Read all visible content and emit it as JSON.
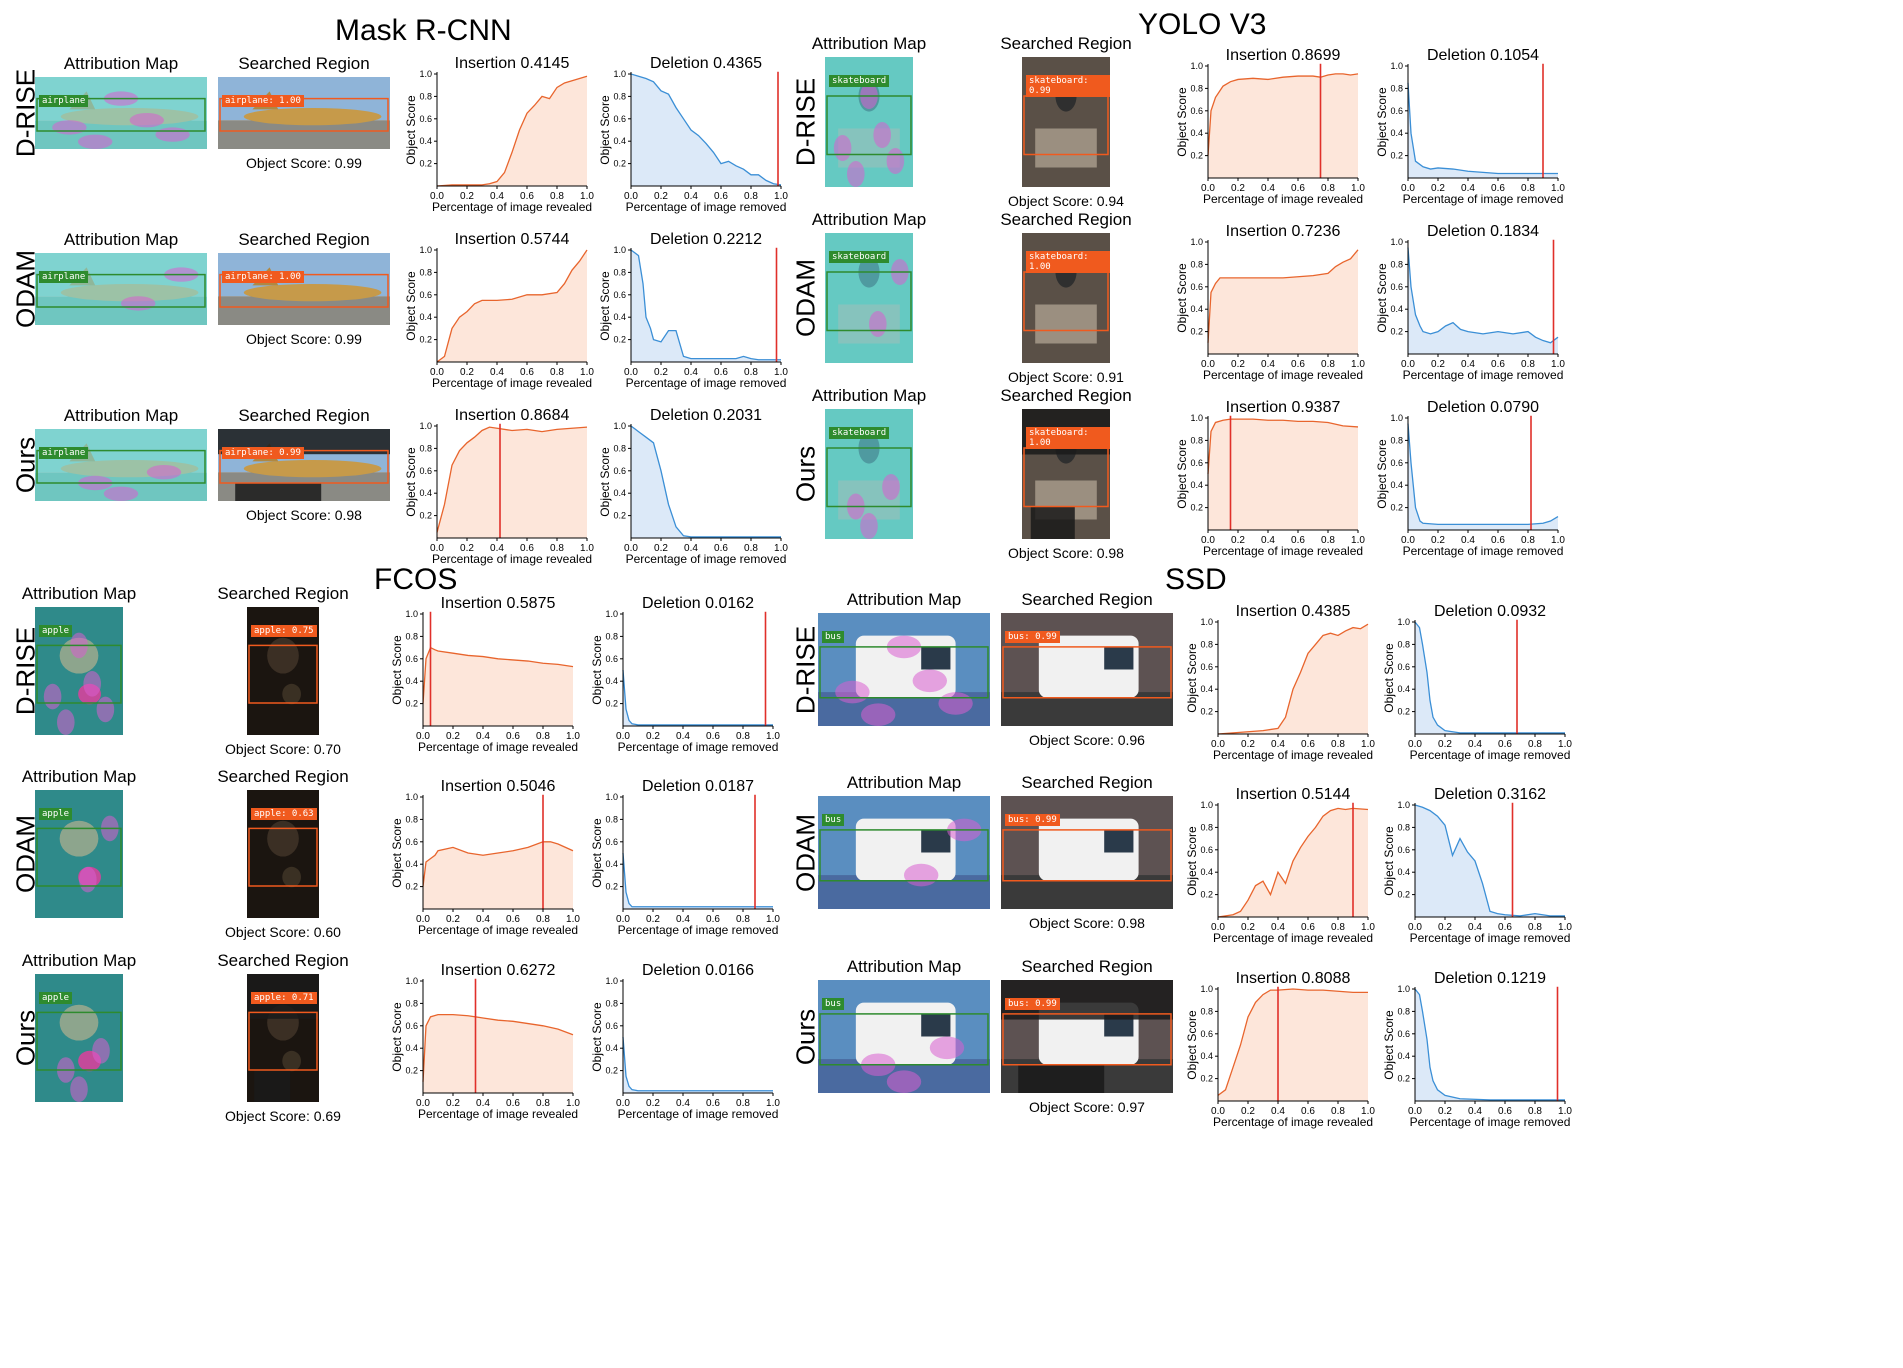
{
  "sections": [
    {
      "title": "Mask R-CNN",
      "object": "airplane",
      "image_kind": "airplane"
    },
    {
      "title": "YOLO V3",
      "object": "skateboard",
      "image_kind": "skate"
    },
    {
      "title": "FCOS",
      "object": "apple",
      "image_kind": "painting"
    },
    {
      "title": "SSD",
      "object": "bus",
      "image_kind": "bus"
    }
  ],
  "labels": {
    "attribution_map": "Attribution Map",
    "searched_region": "Searched Region",
    "object_score_prefix": "Object Score: ",
    "y_axis": "Object Score",
    "x_insertion": "Percentage of image revealed",
    "x_deletion": "Percentage of image removed",
    "insertion_prefix": "Insertion ",
    "deletion_prefix": "Deletion "
  },
  "rows": [
    {
      "section": 0,
      "method": "D-RISE",
      "det_label": "airplane: 1.00",
      "object_score": "0.99",
      "insertion": "0.4145",
      "deletion": "0.4365"
    },
    {
      "section": 0,
      "method": "ODAM",
      "det_label": "airplane: 1.00",
      "object_score": "0.99",
      "insertion": "0.5744",
      "deletion": "0.2212"
    },
    {
      "section": 0,
      "method": "Ours",
      "det_label": "airplane: 0.99",
      "object_score": "0.98",
      "insertion": "0.8684",
      "deletion": "0.2031"
    },
    {
      "section": 1,
      "method": "D-RISE",
      "det_label": "skateboard: 0.99",
      "object_score": "0.94",
      "insertion": "0.8699",
      "deletion": "0.1054"
    },
    {
      "section": 1,
      "method": "ODAM",
      "det_label": "skateboard: 1.00",
      "object_score": "0.91",
      "insertion": "0.7236",
      "deletion": "0.1834"
    },
    {
      "section": 1,
      "method": "Ours",
      "det_label": "skateboard: 1.00",
      "object_score": "0.98",
      "insertion": "0.9387",
      "deletion": "0.0790"
    },
    {
      "section": 2,
      "method": "D-RISE",
      "det_label": "apple: 0.75",
      "object_score": "0.70",
      "insertion": "0.5875",
      "deletion": "0.0162"
    },
    {
      "section": 2,
      "method": "ODAM",
      "det_label": "apple: 0.63",
      "object_score": "0.60",
      "insertion": "0.5046",
      "deletion": "0.0187"
    },
    {
      "section": 2,
      "method": "Ours",
      "det_label": "apple: 0.71",
      "object_score": "0.69",
      "insertion": "0.6272",
      "deletion": "0.0166"
    },
    {
      "section": 3,
      "method": "D-RISE",
      "det_label": "bus: 0.99",
      "object_score": "0.96",
      "insertion": "0.4385",
      "deletion": "0.0932"
    },
    {
      "section": 3,
      "method": "ODAM",
      "det_label": "bus: 0.99",
      "object_score": "0.98",
      "insertion": "0.5144",
      "deletion": "0.3162"
    },
    {
      "section": 3,
      "method": "Ours",
      "det_label": "bus: 0.99",
      "object_score": "0.97",
      "insertion": "0.8088",
      "deletion": "0.1219"
    }
  ],
  "colors": {
    "insertion_line": "#e8652d",
    "insertion_fill": "#fde6da",
    "deletion_line": "#3b8fd6",
    "deletion_fill": "#dce9f8",
    "marker": "#e0302a",
    "green_box": "#2e8b2e",
    "orange_box": "#f05a1e"
  },
  "chart_data": {
    "type": "area",
    "xlim": [
      0,
      1
    ],
    "ylim": [
      0,
      1
    ],
    "xticks": [
      "0.0",
      "0.2",
      "0.4",
      "0.6",
      "0.8",
      "1.0"
    ],
    "yticks": [
      "0.2",
      "0.4",
      "0.6",
      "0.8",
      "1.0"
    ],
    "curves": [
      {
        "row": 0,
        "kind": "insertion",
        "marker": null,
        "x": [
          0,
          0.1,
          0.2,
          0.3,
          0.35,
          0.4,
          0.45,
          0.5,
          0.55,
          0.6,
          0.65,
          0.7,
          0.75,
          0.8,
          0.85,
          0.9,
          0.95,
          1.0
        ],
        "y": [
          0,
          0.01,
          0.01,
          0.01,
          0.02,
          0.04,
          0.12,
          0.3,
          0.5,
          0.65,
          0.72,
          0.8,
          0.78,
          0.88,
          0.92,
          0.94,
          0.96,
          0.98
        ]
      },
      {
        "row": 0,
        "kind": "deletion",
        "marker": 0.98,
        "x": [
          0,
          0.05,
          0.1,
          0.15,
          0.2,
          0.25,
          0.3,
          0.35,
          0.4,
          0.45,
          0.5,
          0.55,
          0.6,
          0.65,
          0.7,
          0.75,
          0.8,
          0.85,
          0.9,
          0.95,
          1.0
        ],
        "y": [
          1.0,
          0.98,
          0.96,
          0.93,
          0.85,
          0.82,
          0.7,
          0.6,
          0.5,
          0.45,
          0.38,
          0.3,
          0.2,
          0.22,
          0.18,
          0.15,
          0.1,
          0.1,
          0.05,
          0.02,
          0.01
        ]
      },
      {
        "row": 1,
        "kind": "insertion",
        "marker": null,
        "x": [
          0,
          0.05,
          0.08,
          0.1,
          0.15,
          0.2,
          0.25,
          0.3,
          0.4,
          0.5,
          0.6,
          0.7,
          0.8,
          0.85,
          0.9,
          0.95,
          1.0
        ],
        "y": [
          0,
          0.05,
          0.2,
          0.3,
          0.4,
          0.45,
          0.52,
          0.55,
          0.55,
          0.56,
          0.6,
          0.6,
          0.62,
          0.7,
          0.82,
          0.9,
          1.0
        ]
      },
      {
        "row": 1,
        "kind": "deletion",
        "marker": 0.97,
        "x": [
          0,
          0.05,
          0.08,
          0.1,
          0.13,
          0.15,
          0.2,
          0.25,
          0.3,
          0.35,
          0.4,
          0.5,
          0.6,
          0.7,
          0.75,
          0.8,
          0.85,
          0.9,
          1.0
        ],
        "y": [
          1.0,
          0.95,
          0.7,
          0.4,
          0.3,
          0.2,
          0.18,
          0.28,
          0.28,
          0.05,
          0.03,
          0.03,
          0.03,
          0.03,
          0.05,
          0.03,
          0.02,
          0.02,
          0.02
        ]
      },
      {
        "row": 2,
        "kind": "insertion",
        "marker": 0.42,
        "x": [
          0,
          0.05,
          0.1,
          0.15,
          0.2,
          0.25,
          0.3,
          0.35,
          0.4,
          0.5,
          0.6,
          0.7,
          0.8,
          0.9,
          1.0
        ],
        "y": [
          0.05,
          0.3,
          0.65,
          0.78,
          0.85,
          0.9,
          0.96,
          0.99,
          0.98,
          0.96,
          0.97,
          0.95,
          0.97,
          0.98,
          0.99
        ]
      },
      {
        "row": 2,
        "kind": "deletion",
        "marker": null,
        "x": [
          0,
          0.05,
          0.1,
          0.15,
          0.2,
          0.25,
          0.3,
          0.35,
          0.4,
          0.5,
          0.6,
          0.8,
          1.0
        ],
        "y": [
          1.0,
          0.95,
          0.9,
          0.85,
          0.6,
          0.3,
          0.1,
          0.02,
          0.01,
          0.01,
          0.01,
          0.01,
          0.01
        ]
      },
      {
        "row": 3,
        "kind": "insertion",
        "marker": 0.75,
        "x": [
          0,
          0.02,
          0.05,
          0.1,
          0.15,
          0.2,
          0.3,
          0.4,
          0.5,
          0.6,
          0.7,
          0.75,
          0.8,
          0.85,
          0.9,
          0.95,
          1.0
        ],
        "y": [
          0.2,
          0.6,
          0.72,
          0.82,
          0.86,
          0.88,
          0.89,
          0.88,
          0.9,
          0.91,
          0.91,
          0.9,
          0.92,
          0.93,
          0.93,
          0.92,
          0.93
        ]
      },
      {
        "row": 3,
        "kind": "deletion",
        "marker": 0.9,
        "x": [
          0,
          0.02,
          0.05,
          0.1,
          0.15,
          0.2,
          0.3,
          0.4,
          0.5,
          0.6,
          0.7,
          0.8,
          0.9,
          1.0
        ],
        "y": [
          0.85,
          0.4,
          0.15,
          0.1,
          0.08,
          0.09,
          0.08,
          0.06,
          0.05,
          0.04,
          0.04,
          0.04,
          0.04,
          0.04
        ]
      },
      {
        "row": 4,
        "kind": "insertion",
        "marker": null,
        "x": [
          0,
          0.02,
          0.05,
          0.08,
          0.1,
          0.2,
          0.3,
          0.5,
          0.7,
          0.8,
          0.85,
          0.9,
          0.95,
          1.0
        ],
        "y": [
          0.1,
          0.55,
          0.63,
          0.68,
          0.68,
          0.68,
          0.68,
          0.68,
          0.7,
          0.72,
          0.78,
          0.82,
          0.85,
          0.93
        ]
      },
      {
        "row": 4,
        "kind": "deletion",
        "marker": 0.97,
        "x": [
          0,
          0.02,
          0.05,
          0.08,
          0.1,
          0.15,
          0.2,
          0.25,
          0.3,
          0.35,
          0.4,
          0.5,
          0.6,
          0.7,
          0.8,
          0.85,
          0.9,
          0.95,
          1.0
        ],
        "y": [
          0.95,
          0.6,
          0.35,
          0.25,
          0.2,
          0.18,
          0.2,
          0.25,
          0.28,
          0.22,
          0.2,
          0.18,
          0.2,
          0.18,
          0.2,
          0.15,
          0.12,
          0.1,
          0.15
        ]
      },
      {
        "row": 5,
        "kind": "insertion",
        "marker": 0.15,
        "x": [
          0,
          0.02,
          0.05,
          0.1,
          0.15,
          0.2,
          0.3,
          0.4,
          0.5,
          0.6,
          0.7,
          0.8,
          0.9,
          1.0
        ],
        "y": [
          0.5,
          0.88,
          0.96,
          0.98,
          0.99,
          0.99,
          0.99,
          0.98,
          0.98,
          0.97,
          0.97,
          0.96,
          0.93,
          0.92
        ]
      },
      {
        "row": 5,
        "kind": "deletion",
        "marker": 0.82,
        "x": [
          0,
          0.02,
          0.05,
          0.08,
          0.1,
          0.2,
          0.4,
          0.6,
          0.8,
          0.9,
          0.95,
          1.0
        ],
        "y": [
          0.95,
          0.6,
          0.2,
          0.08,
          0.06,
          0.05,
          0.05,
          0.05,
          0.05,
          0.06,
          0.08,
          0.12
        ]
      },
      {
        "row": 6,
        "kind": "insertion",
        "marker": 0.05,
        "x": [
          0,
          0.02,
          0.05,
          0.08,
          0.1,
          0.2,
          0.3,
          0.4,
          0.5,
          0.6,
          0.7,
          0.8,
          0.9,
          1.0
        ],
        "y": [
          0.2,
          0.6,
          0.7,
          0.68,
          0.67,
          0.65,
          0.63,
          0.62,
          0.6,
          0.59,
          0.58,
          0.56,
          0.55,
          0.53
        ]
      },
      {
        "row": 6,
        "kind": "deletion",
        "marker": 0.95,
        "x": [
          0,
          0.02,
          0.04,
          0.06,
          0.1,
          0.2,
          0.4,
          0.6,
          0.8,
          1.0
        ],
        "y": [
          0.5,
          0.15,
          0.05,
          0.02,
          0.01,
          0.01,
          0.01,
          0.01,
          0.01,
          0.01
        ]
      },
      {
        "row": 7,
        "kind": "insertion",
        "marker": 0.8,
        "x": [
          0,
          0.02,
          0.05,
          0.08,
          0.1,
          0.2,
          0.3,
          0.4,
          0.5,
          0.6,
          0.7,
          0.8,
          0.85,
          0.9,
          0.95,
          1.0
        ],
        "y": [
          0.2,
          0.42,
          0.45,
          0.48,
          0.52,
          0.55,
          0.5,
          0.48,
          0.5,
          0.52,
          0.55,
          0.6,
          0.6,
          0.58,
          0.55,
          0.52
        ]
      },
      {
        "row": 7,
        "kind": "deletion",
        "marker": 0.88,
        "x": [
          0,
          0.02,
          0.04,
          0.06,
          0.1,
          0.2,
          0.4,
          0.6,
          0.8,
          1.0
        ],
        "y": [
          0.5,
          0.15,
          0.05,
          0.02,
          0.02,
          0.02,
          0.02,
          0.02,
          0.02,
          0.02
        ]
      },
      {
        "row": 8,
        "kind": "insertion",
        "marker": 0.35,
        "x": [
          0,
          0.02,
          0.05,
          0.1,
          0.2,
          0.3,
          0.4,
          0.5,
          0.6,
          0.7,
          0.8,
          0.9,
          1.0
        ],
        "y": [
          0.1,
          0.6,
          0.68,
          0.7,
          0.7,
          0.69,
          0.67,
          0.65,
          0.64,
          0.62,
          0.6,
          0.57,
          0.52
        ]
      },
      {
        "row": 8,
        "kind": "deletion",
        "marker": null,
        "x": [
          0,
          0.02,
          0.04,
          0.06,
          0.1,
          0.2,
          0.4,
          0.6,
          0.8,
          1.0
        ],
        "y": [
          0.5,
          0.15,
          0.06,
          0.03,
          0.02,
          0.02,
          0.02,
          0.02,
          0.02,
          0.02
        ]
      },
      {
        "row": 9,
        "kind": "insertion",
        "marker": null,
        "x": [
          0,
          0.1,
          0.2,
          0.3,
          0.4,
          0.45,
          0.5,
          0.55,
          0.6,
          0.65,
          0.7,
          0.75,
          0.8,
          0.85,
          0.9,
          0.95,
          1.0
        ],
        "y": [
          0,
          0.01,
          0.02,
          0.03,
          0.05,
          0.15,
          0.4,
          0.55,
          0.72,
          0.8,
          0.88,
          0.9,
          0.88,
          0.92,
          0.95,
          0.94,
          0.98
        ]
      },
      {
        "row": 9,
        "kind": "deletion",
        "marker": 0.68,
        "x": [
          0,
          0.03,
          0.05,
          0.08,
          0.1,
          0.12,
          0.15,
          0.2,
          0.3,
          0.5,
          0.7,
          1.0
        ],
        "y": [
          1.0,
          0.95,
          0.8,
          0.55,
          0.3,
          0.15,
          0.08,
          0.03,
          0.01,
          0.01,
          0.01,
          0.01
        ]
      },
      {
        "row": 10,
        "kind": "insertion",
        "marker": 0.9,
        "x": [
          0,
          0.1,
          0.15,
          0.2,
          0.25,
          0.3,
          0.35,
          0.4,
          0.45,
          0.5,
          0.55,
          0.6,
          0.65,
          0.7,
          0.75,
          0.8,
          0.85,
          0.9,
          1.0
        ],
        "y": [
          0,
          0.02,
          0.05,
          0.15,
          0.28,
          0.32,
          0.2,
          0.4,
          0.3,
          0.5,
          0.62,
          0.72,
          0.8,
          0.9,
          0.95,
          0.97,
          0.96,
          0.97,
          0.96
        ]
      },
      {
        "row": 10,
        "kind": "deletion",
        "marker": 0.65,
        "x": [
          0,
          0.05,
          0.1,
          0.15,
          0.2,
          0.25,
          0.3,
          0.35,
          0.4,
          0.45,
          0.5,
          0.55,
          0.6,
          0.7,
          0.8,
          0.9,
          1.0
        ],
        "y": [
          1.0,
          0.98,
          0.95,
          0.9,
          0.82,
          0.55,
          0.7,
          0.58,
          0.5,
          0.3,
          0.05,
          0.03,
          0.02,
          0.01,
          0.03,
          0.01,
          0.01
        ]
      },
      {
        "row": 11,
        "kind": "insertion",
        "marker": 0.4,
        "x": [
          0,
          0.05,
          0.1,
          0.15,
          0.2,
          0.25,
          0.3,
          0.35,
          0.4,
          0.5,
          0.6,
          0.7,
          0.8,
          0.9,
          1.0
        ],
        "y": [
          0.05,
          0.1,
          0.3,
          0.5,
          0.75,
          0.88,
          0.95,
          0.99,
          0.99,
          1.0,
          0.99,
          0.99,
          0.98,
          0.97,
          0.97
        ]
      },
      {
        "row": 11,
        "kind": "deletion",
        "marker": 0.95,
        "x": [
          0,
          0.03,
          0.05,
          0.08,
          0.1,
          0.12,
          0.15,
          0.2,
          0.3,
          0.5,
          0.7,
          0.8,
          1.0
        ],
        "y": [
          1.0,
          0.95,
          0.8,
          0.55,
          0.3,
          0.18,
          0.1,
          0.05,
          0.02,
          0.01,
          0.01,
          0.01,
          0.01
        ]
      }
    ]
  }
}
